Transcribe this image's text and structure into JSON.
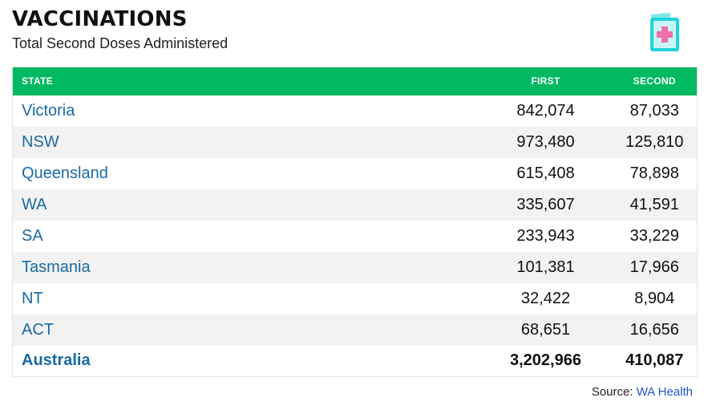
{
  "header": {
    "title": "VACCINATIONS",
    "subtitle": "Total Second Doses Administered",
    "icon": "vaccination-card-icon"
  },
  "table": {
    "columns": [
      "STATE",
      "FIRST",
      "SECOND"
    ],
    "rows": [
      {
        "state": "Victoria",
        "first": "842,074",
        "second": "87,033"
      },
      {
        "state": "NSW",
        "first": "973,480",
        "second": "125,810"
      },
      {
        "state": "Queensland",
        "first": "615,408",
        "second": "78,898"
      },
      {
        "state": "WA",
        "first": "335,607",
        "second": "41,591"
      },
      {
        "state": "SA",
        "first": "233,943",
        "second": "33,229"
      },
      {
        "state": "Tasmania",
        "first": "101,381",
        "second": "17,966"
      },
      {
        "state": "NT",
        "first": "32,422",
        "second": "8,904"
      },
      {
        "state": "ACT",
        "first": "68,651",
        "second": "16,656"
      },
      {
        "state": "Australia",
        "first": "3,202,966",
        "second": "410,087"
      }
    ]
  },
  "source": {
    "label": "Source: ",
    "link_text": "WA Health"
  },
  "colors": {
    "header_green": "#00b960",
    "link_blue": "#1a6aa3",
    "icon_teal": "#22d3d9",
    "icon_pink": "#ef6fa8"
  }
}
